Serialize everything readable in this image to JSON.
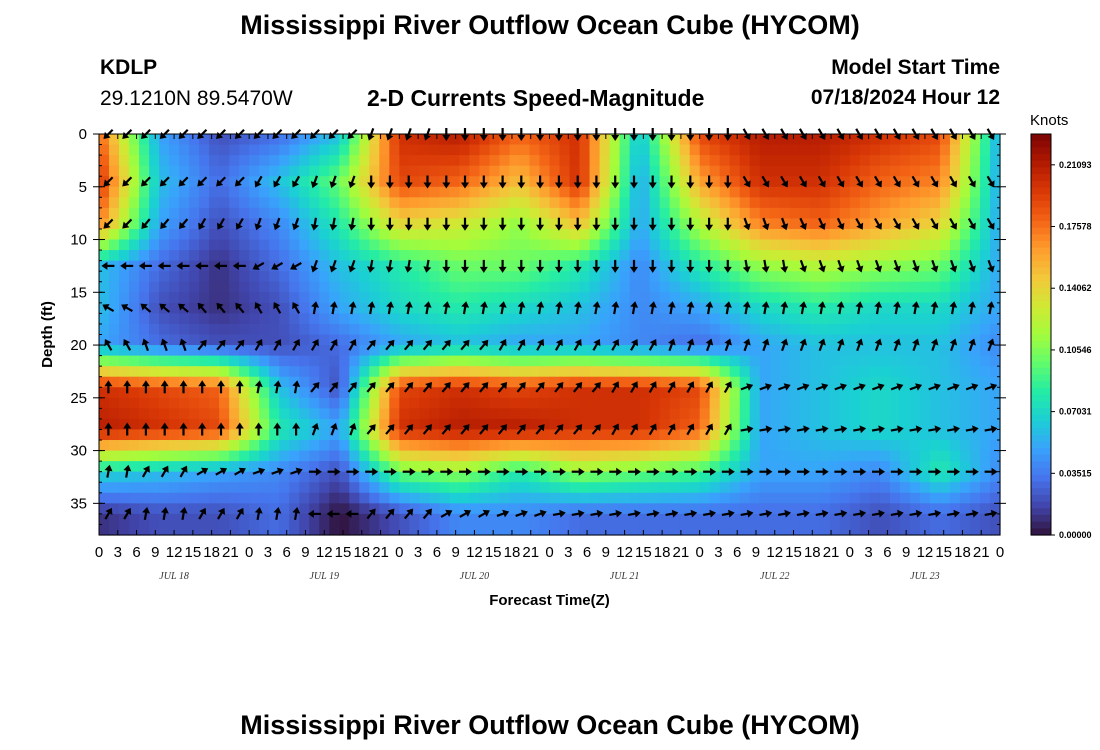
{
  "header": {
    "title": "Mississippi River Outflow Ocean Cube (HYCOM)",
    "station": "KDLP",
    "coords": "29.1210N  89.5470W",
    "subtitle": "2-D Currents Speed-Magnitude",
    "model_start_label": "Model Start Time",
    "model_start_value": "07/18/2024 Hour 12",
    "footer_title": "Mississippi River Outflow Ocean Cube (HYCOM)"
  },
  "chart_data": {
    "type": "heatmap",
    "xlabel": "Forecast Time(Z)",
    "ylabel": "Depth (ft)",
    "x_hours": [
      0,
      144
    ],
    "ylim": [
      0,
      38
    ],
    "y_ticks": [
      0,
      5,
      10,
      15,
      20,
      25,
      30,
      35
    ],
    "x_tick_labels": [
      "0",
      "3",
      "6",
      "9",
      "12",
      "15",
      "18",
      "21",
      "0",
      "3",
      "6",
      "9",
      "12",
      "15",
      "18",
      "21",
      "0",
      "3",
      "6",
      "9",
      "12",
      "15",
      "18",
      "21",
      "0",
      "3",
      "6",
      "9",
      "12",
      "15",
      "18",
      "21",
      "0",
      "3",
      "6",
      "9",
      "12",
      "15",
      "18",
      "21",
      "0",
      "3",
      "6",
      "9",
      "12",
      "15",
      "18",
      "21",
      "0"
    ],
    "day_labels": [
      "JUL 18",
      "JUL 19",
      "JUL 20",
      "JUL 21",
      "JUL 22",
      "JUL 23"
    ],
    "colorbar": {
      "unit": "Knots",
      "min": 0.0,
      "max": 0.2285,
      "tick_labels": [
        "0.21093",
        "0.17578",
        "0.14062",
        "0.10546",
        "0.07031",
        "0.03515",
        "0.00000"
      ],
      "tick_values": [
        0.21093,
        0.17578,
        0.14062,
        0.10546,
        0.07031,
        0.03515,
        0.0
      ],
      "colors": [
        "#30123b",
        "#4145ab",
        "#4675ed",
        "#39a2fc",
        "#1bcfd4",
        "#24eca6",
        "#61fc6c",
        "#a4fc3b",
        "#d1e834",
        "#f3c63a",
        "#fe9b2d",
        "#f36315",
        "#d93806",
        "#b11901",
        "#7a0403"
      ]
    },
    "depth_levels_ft": [
      0,
      4.5,
      8.5,
      12.5,
      16.5,
      20,
      24,
      28,
      32,
      36
    ],
    "speed_field_knots": [
      [
        0.18,
        0.05,
        0.02,
        0.03,
        0.06,
        0.2,
        0.21,
        0.18,
        0.2,
        0.06,
        0.19,
        0.21,
        0.21,
        0.2,
        0.19,
        0.05
      ],
      [
        0.2,
        0.06,
        0.03,
        0.06,
        0.1,
        0.19,
        0.18,
        0.15,
        0.2,
        0.05,
        0.16,
        0.2,
        0.2,
        0.18,
        0.17,
        0.05
      ],
      [
        0.17,
        0.05,
        0.02,
        0.04,
        0.08,
        0.14,
        0.13,
        0.11,
        0.15,
        0.05,
        0.12,
        0.17,
        0.18,
        0.16,
        0.14,
        0.05
      ],
      [
        0.06,
        0.03,
        0.01,
        0.03,
        0.06,
        0.08,
        0.1,
        0.1,
        0.08,
        0.04,
        0.08,
        0.11,
        0.12,
        0.11,
        0.1,
        0.05
      ],
      [
        0.06,
        0.02,
        0.01,
        0.02,
        0.05,
        0.07,
        0.08,
        0.07,
        0.06,
        0.04,
        0.05,
        0.07,
        0.08,
        0.07,
        0.07,
        0.05
      ],
      [
        0.05,
        0.03,
        0.02,
        0.02,
        0.03,
        0.05,
        0.06,
        0.05,
        0.05,
        0.04,
        0.03,
        0.05,
        0.06,
        0.06,
        0.06,
        0.04
      ],
      [
        0.2,
        0.19,
        0.18,
        0.06,
        0.02,
        0.19,
        0.2,
        0.19,
        0.2,
        0.2,
        0.19,
        0.05,
        0.06,
        0.07,
        0.06,
        0.05
      ],
      [
        0.21,
        0.2,
        0.19,
        0.08,
        0.05,
        0.2,
        0.21,
        0.21,
        0.2,
        0.2,
        0.18,
        0.05,
        0.06,
        0.07,
        0.06,
        0.05
      ],
      [
        0.07,
        0.06,
        0.05,
        0.04,
        0.02,
        0.1,
        0.11,
        0.08,
        0.11,
        0.1,
        0.09,
        0.05,
        0.05,
        0.04,
        0.08,
        0.04
      ],
      [
        0.01,
        0.02,
        0.02,
        0.03,
        0.0,
        0.02,
        0.04,
        0.04,
        0.03,
        0.03,
        0.03,
        0.03,
        0.03,
        0.02,
        0.03,
        0.02
      ]
    ],
    "arrow_direction_deg": [
      [
        225,
        225,
        225,
        225,
        225,
        200,
        180,
        180,
        180,
        180,
        180,
        150,
        150,
        150,
        150,
        150
      ],
      [
        225,
        225,
        225,
        210,
        200,
        180,
        180,
        180,
        180,
        180,
        180,
        150,
        150,
        150,
        150,
        150
      ],
      [
        225,
        220,
        210,
        200,
        190,
        180,
        180,
        180,
        180,
        180,
        180,
        160,
        155,
        150,
        150,
        150
      ],
      [
        270,
        270,
        270,
        240,
        200,
        190,
        180,
        180,
        180,
        180,
        180,
        170,
        160,
        160,
        160,
        160
      ],
      [
        300,
        310,
        320,
        330,
        10,
        10,
        10,
        10,
        10,
        10,
        10,
        10,
        10,
        10,
        10,
        10
      ],
      [
        330,
        340,
        40,
        30,
        30,
        40,
        40,
        30,
        30,
        30,
        20,
        20,
        20,
        20,
        20,
        20
      ],
      [
        0,
        0,
        0,
        10,
        40,
        40,
        40,
        40,
        40,
        30,
        30,
        70,
        70,
        70,
        70,
        70
      ],
      [
        0,
        0,
        0,
        0,
        20,
        40,
        40,
        40,
        40,
        30,
        30,
        80,
        80,
        80,
        80,
        80
      ],
      [
        10,
        30,
        60,
        70,
        90,
        90,
        90,
        90,
        90,
        90,
        90,
        90,
        90,
        90,
        90,
        90
      ],
      [
        30,
        10,
        30,
        10,
        270,
        40,
        60,
        70,
        80,
        80,
        80,
        80,
        80,
        80,
        80,
        80
      ]
    ]
  }
}
